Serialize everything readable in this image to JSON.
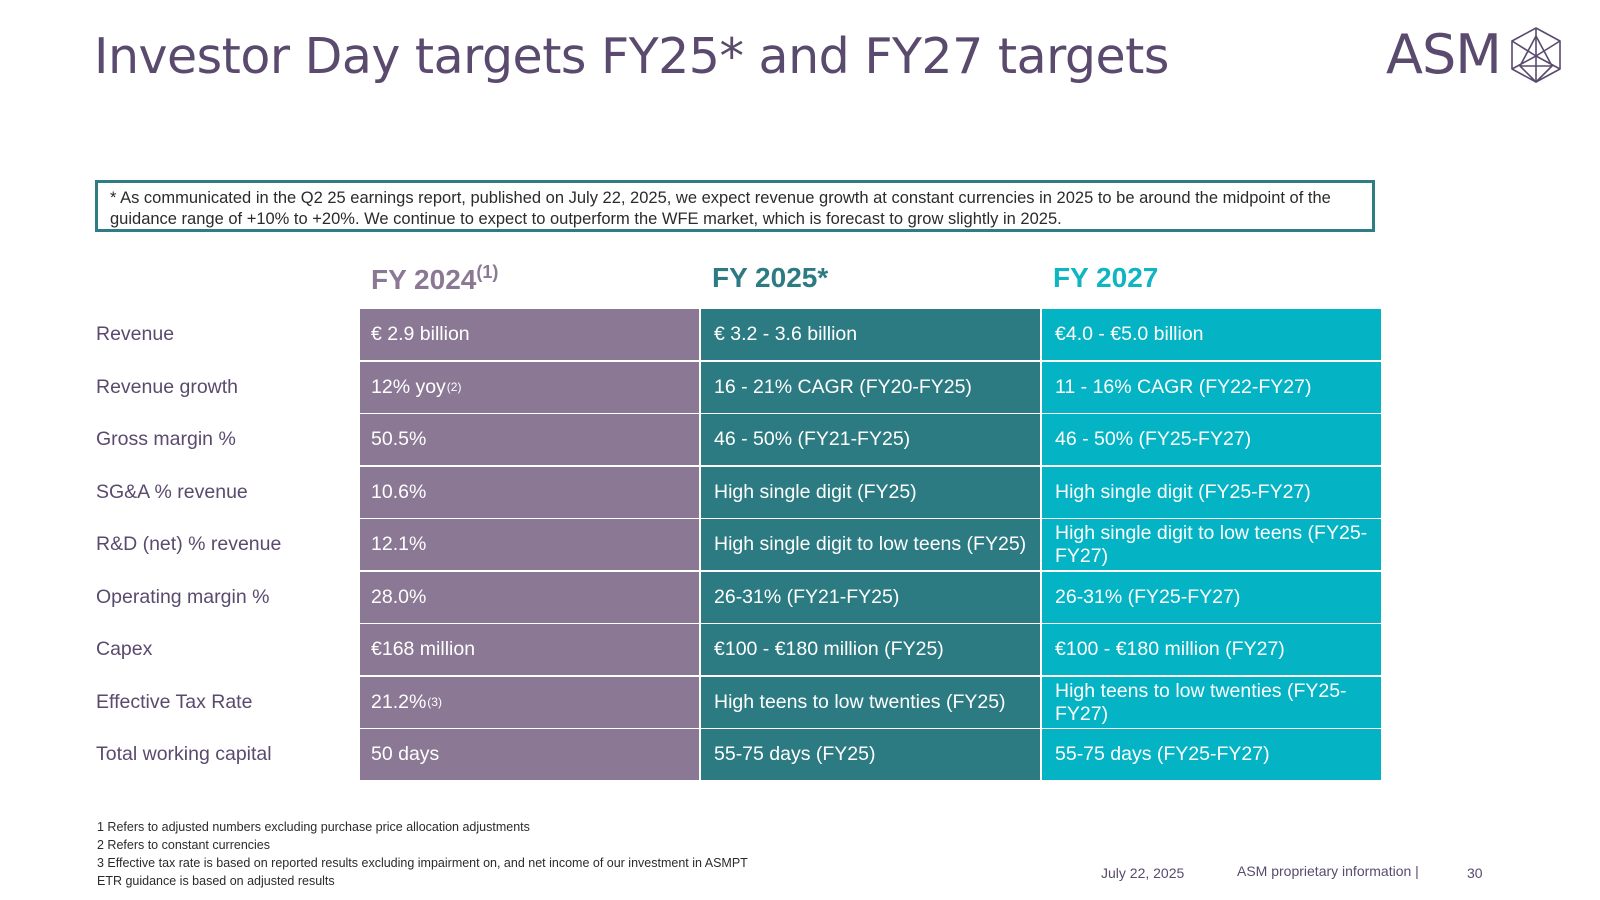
{
  "title": "Investor Day targets FY25* and FY27 targets",
  "logo": {
    "text": "ASM",
    "icon": "geometric-crystal-icon",
    "color": "#5a4a6e"
  },
  "note": "* As communicated in the Q2 25 earnings report, published on July 22, 2025, we expect revenue growth at constant currencies in 2025 to be around the midpoint of the guidance range of +10% to +20%.  We continue to expect to outperform the WFE market, which is forecast to grow slightly in 2025.",
  "columns": [
    {
      "label": "FY 2024",
      "sup": "(1)",
      "color": "#8b7894"
    },
    {
      "label": "FY 2025*",
      "sup": "",
      "color": "#2d7b82"
    },
    {
      "label": "FY 2027",
      "sup": "",
      "color": "#04b4c4"
    }
  ],
  "rows": [
    {
      "label": "Revenue",
      "fy24": "€ 2.9 billion",
      "fy24_sup": "",
      "fy25": "€ 3.2 - 3.6 billion",
      "fy27": "€4.0 - €5.0 billion"
    },
    {
      "label": "Revenue growth",
      "fy24": "12% yoy",
      "fy24_sup": "(2)",
      "fy25": "16 - 21% CAGR (FY20-FY25)",
      "fy27": "11 - 16% CAGR (FY22-FY27)"
    },
    {
      "label": "Gross margin %",
      "fy24": "50.5%",
      "fy24_sup": "",
      "fy25": "46 - 50% (FY21-FY25)",
      "fy27": "46 - 50% (FY25-FY27)"
    },
    {
      "label": "SG&A % revenue",
      "fy24": "10.6%",
      "fy24_sup": "",
      "fy25": "High single digit (FY25)",
      "fy27": "High single digit (FY25-FY27)"
    },
    {
      "label": "R&D (net) % revenue",
      "fy24": "12.1%",
      "fy24_sup": "",
      "fy25": "High single digit to low teens (FY25)",
      "fy27": "High single digit to low teens (FY25-FY27)"
    },
    {
      "label": "Operating margin %",
      "fy24": "28.0%",
      "fy24_sup": "",
      "fy25": "26-31% (FY21-FY25)",
      "fy27": "26-31% (FY25-FY27)"
    },
    {
      "label": "Capex",
      "fy24": "€168 million",
      "fy24_sup": "",
      "fy25": "€100 - €180 million (FY25)",
      "fy27": "€100 - €180 million (FY27)"
    },
    {
      "label": "Effective Tax Rate",
      "fy24": "21.2% ",
      "fy24_sup": "(3)",
      "fy25": "High teens to low twenties (FY25)",
      "fy27": "High teens to low twenties (FY25-FY27)"
    },
    {
      "label": "Total working capital",
      "fy24": "50 days",
      "fy24_sup": "",
      "fy25": "55-75 days (FY25)",
      "fy27": "55-75 days (FY25-FY27)"
    }
  ],
  "footnotes": [
    "1 Refers to adjusted numbers excluding purchase price allocation adjustments",
    "2 Refers to constant currencies",
    "3 Effective tax rate is based on reported results excluding impairment on, and net income of our investment in ASMPT",
    "ETR guidance is based on adjusted results"
  ],
  "footer": {
    "date": "July 22, 2025",
    "proprietary": "ASM proprietary information |",
    "page": "30"
  }
}
